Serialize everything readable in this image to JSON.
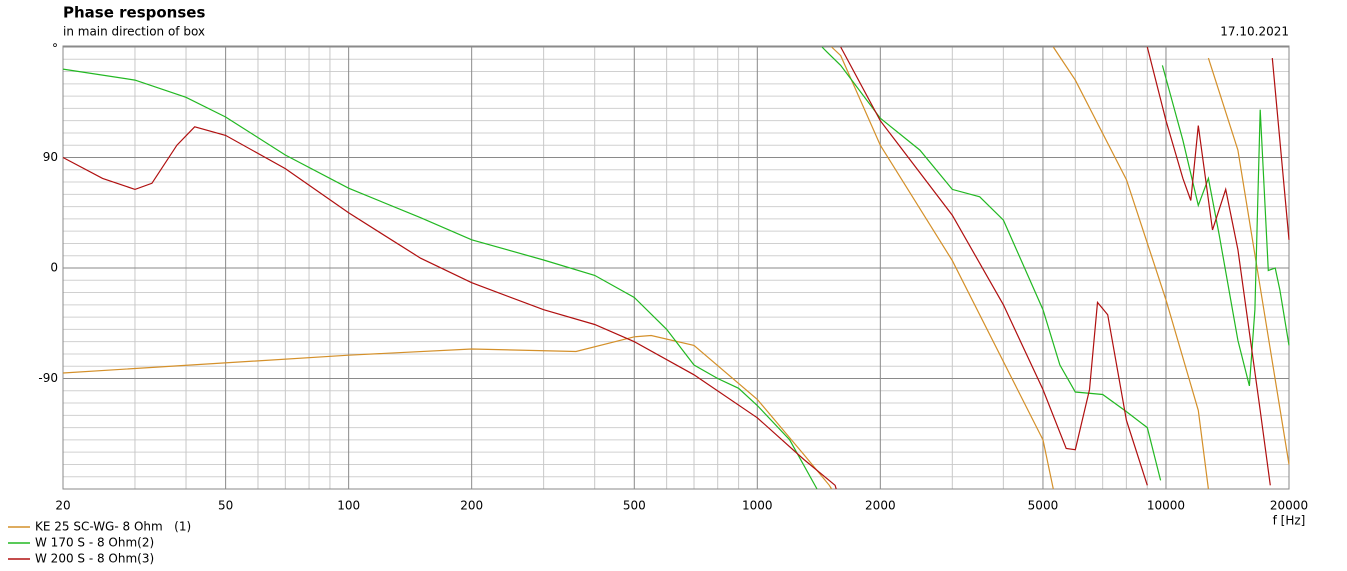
{
  "chart_data": {
    "type": "line",
    "title": "Phase responses",
    "subtitle": "in main direction of box",
    "date": "17.10.2021",
    "x_label": "f [Hz]",
    "xscale": "log",
    "xlim": [
      20,
      20000
    ],
    "ylim": [
      -180,
      180
    ],
    "xticks": [
      20,
      50,
      100,
      200,
      500,
      1000,
      2000,
      5000,
      10000,
      20000
    ],
    "yticks": [
      {
        "value": 180,
        "label": "°"
      },
      90,
      0,
      -90
    ],
    "minor_xticks": [
      30,
      40,
      60,
      70,
      80,
      90,
      300,
      400,
      600,
      700,
      800,
      900,
      3000,
      4000,
      6000,
      7000,
      8000,
      9000
    ],
    "minor_yticks": [
      170,
      160,
      150,
      140,
      130,
      120,
      110,
      100,
      80,
      70,
      60,
      50,
      40,
      30,
      20,
      10,
      -10,
      -20,
      -30,
      -40,
      -50,
      -60,
      -70,
      -80,
      -100,
      -110,
      -120,
      -130,
      -140,
      -150,
      -160,
      -170
    ],
    "grid": true,
    "legend": "bottom-left",
    "series": [
      {
        "name": "KE 25 SC-WG- 8 Ohm   (1)",
        "color": "#d4902a",
        "x": [
          20,
          100,
          200,
          360,
          500,
          550,
          700,
          1000,
          1300,
          1500,
          1520,
          1520,
          1520,
          1600,
          2000,
          3000,
          5000,
          5300,
          5300,
          5300,
          6000,
          8000,
          10000,
          12000,
          12700,
          12700,
          12700,
          15000,
          20000
        ],
        "values": [
          -85.5,
          -71,
          -66,
          -68,
          -56,
          -55,
          -63,
          -107,
          -152,
          -177,
          -180,
          null,
          180,
          173,
          100,
          6,
          -140,
          -180,
          null,
          180,
          153,
          72,
          -26,
          -116,
          -180,
          null,
          171,
          96,
          -160
        ]
      },
      {
        "name": "W 170 S - 8 Ohm(2)",
        "color": "#22b822",
        "x": [
          20,
          30,
          40,
          50,
          70,
          100,
          150,
          200,
          300,
          400,
          500,
          600,
          700,
          800,
          900,
          1000,
          1200,
          1400,
          1400,
          1440,
          1480,
          1600,
          2000,
          2500,
          3000,
          3500,
          4000,
          5000,
          5500,
          6000,
          7000,
          8000,
          9000,
          9700,
          9700,
          9800,
          11000,
          12000,
          12700,
          13500,
          15000,
          16000,
          16500,
          17000,
          17800,
          18500,
          19000,
          20000
        ],
        "values": [
          162,
          153,
          139,
          123,
          92,
          65,
          41,
          23,
          6.5,
          -6,
          -24,
          -50,
          -79,
          -90,
          -98,
          -112,
          -140,
          -180,
          null,
          180,
          176,
          165,
          122,
          96,
          64,
          58,
          39,
          -34,
          -79,
          -101,
          -103,
          -117,
          -130,
          -173,
          null,
          165,
          104,
          51,
          73,
          27,
          -59,
          -96,
          -34,
          129,
          -2,
          0,
          -18,
          -63
        ]
      },
      {
        "name": "W 200 S - 8 Ohm(3)",
        "color": "#b01010",
        "x": [
          20,
          25,
          30,
          33,
          38,
          42,
          50,
          70,
          100,
          150,
          200,
          300,
          400,
          500,
          700,
          1000,
          1300,
          1550,
          1560,
          1560,
          1600,
          2000,
          3000,
          4000,
          5000,
          5700,
          6000,
          6500,
          6800,
          7200,
          8000,
          9000,
          9000,
          9000,
          10000,
          11000,
          11500,
          12000,
          13000,
          14000,
          15000,
          17000,
          18000,
          18000,
          18200,
          20000
        ],
        "values": [
          90,
          73,
          64,
          69,
          100,
          115,
          108,
          81,
          45,
          8,
          -12,
          -34,
          -46,
          -60,
          -87,
          -122,
          -156,
          -177,
          -180,
          null,
          180,
          120,
          43,
          -30,
          -99,
          -147,
          -148,
          -99,
          -28,
          -38,
          -124,
          -177,
          null,
          180,
          120,
          73,
          55,
          116,
          31,
          64,
          15,
          -116,
          -177,
          null,
          171,
          23
        ]
      }
    ]
  }
}
